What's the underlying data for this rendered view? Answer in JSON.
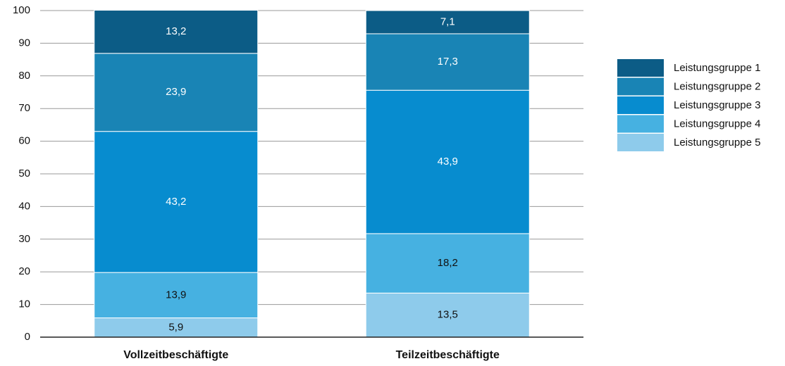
{
  "chart_data": {
    "type": "stacked_bar",
    "categories": [
      "Vollzeitbeschäftigte",
      "Teilzeitbeschäftigte"
    ],
    "series": [
      {
        "name": "Leistungsgruppe 1",
        "color": "#0c5c86",
        "values": [
          13.2,
          7.1
        ],
        "value_labels": [
          "13,2",
          "7,1"
        ]
      },
      {
        "name": "Leistungsgruppe 2",
        "color": "#1984b5",
        "values": [
          23.9,
          17.3
        ],
        "value_labels": [
          "23,9",
          "17,3"
        ]
      },
      {
        "name": "Leistungsgruppe 3",
        "color": "#078ccf",
        "values": [
          43.2,
          43.9
        ],
        "value_labels": [
          "43,2",
          "43,9"
        ]
      },
      {
        "name": "Leistungsgruppe 4",
        "color": "#46b1e1",
        "values": [
          13.9,
          18.2
        ],
        "value_labels": [
          "13,9",
          "18,2"
        ]
      },
      {
        "name": "Leistungsgruppe 5",
        "color": "#8ecbeb",
        "values": [
          5.9,
          13.5
        ],
        "value_labels": [
          "5,9",
          "13,5"
        ]
      }
    ],
    "ylim": [
      0,
      100
    ],
    "yticks": [
      0,
      10,
      20,
      30,
      40,
      50,
      60,
      70,
      80,
      90,
      100
    ],
    "grid": true,
    "legend": "right"
  }
}
